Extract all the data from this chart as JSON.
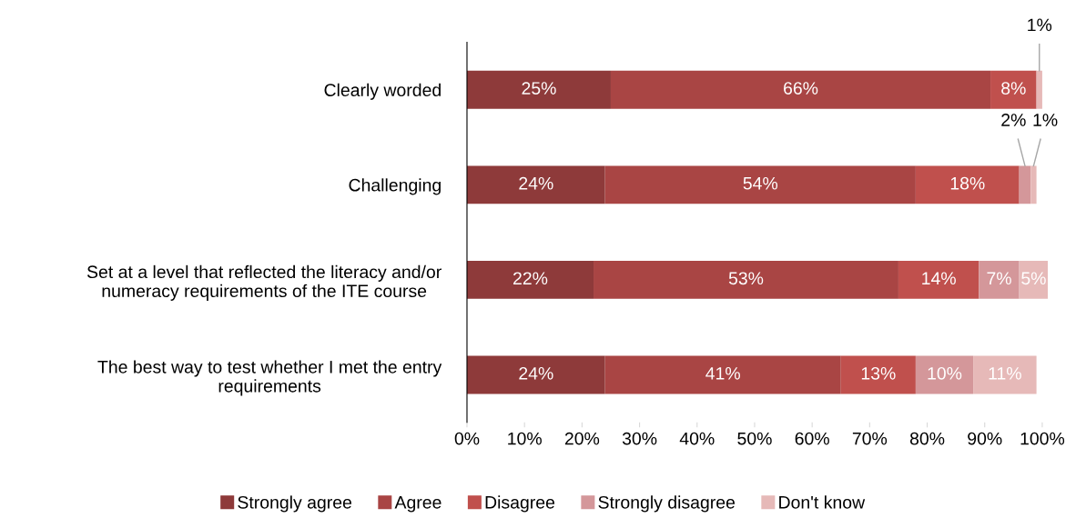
{
  "chart_data": {
    "type": "bar",
    "orientation": "horizontal",
    "stacked": true,
    "categories": [
      "Clearly worded",
      "Challenging",
      "Set at a level that reflected the literacy and/or\nnumeracy requirements of the ITE course",
      "The best way to test whether I met the entry\nrequirements"
    ],
    "series": [
      {
        "name": "Strongly agree",
        "color": "#8e3a3a",
        "values": [
          25,
          24,
          22,
          24
        ],
        "value_labels": [
          "25%",
          "24%",
          "22%",
          "24%"
        ]
      },
      {
        "name": "Agree",
        "color": "#a94544",
        "values": [
          66,
          54,
          53,
          41
        ],
        "value_labels": [
          "66%",
          "54%",
          "53%",
          "41%"
        ]
      },
      {
        "name": "Disagree",
        "color": "#c0504d",
        "values": [
          8,
          18,
          14,
          13
        ],
        "value_labels": [
          "8%",
          "18%",
          "14%",
          "13%"
        ]
      },
      {
        "name": "Strongly disagree",
        "color": "#d4979a",
        "values": [
          0,
          2,
          7,
          10
        ],
        "value_labels": [
          null,
          "2%",
          "7%",
          "10%"
        ]
      },
      {
        "name": "Don't know",
        "color": "#e6b9b8",
        "values": [
          1,
          1,
          5,
          11
        ],
        "value_labels": [
          "1%",
          "1%",
          "5%",
          "11%"
        ]
      }
    ],
    "xlim": [
      0,
      101
    ],
    "xticks": [
      {
        "value": 0,
        "label": "0%"
      },
      {
        "value": 10,
        "label": "10%"
      },
      {
        "value": 20,
        "label": "20%"
      },
      {
        "value": 30,
        "label": "30%"
      },
      {
        "value": 40,
        "label": "40%"
      },
      {
        "value": 50,
        "label": "50%"
      },
      {
        "value": 60,
        "label": "60%"
      },
      {
        "value": 70,
        "label": "70%"
      },
      {
        "value": 80,
        "label": "80%"
      },
      {
        "value": 90,
        "label": "90%"
      },
      {
        "value": 100,
        "label": "100%"
      }
    ],
    "grid": false,
    "legend": "bottom"
  }
}
